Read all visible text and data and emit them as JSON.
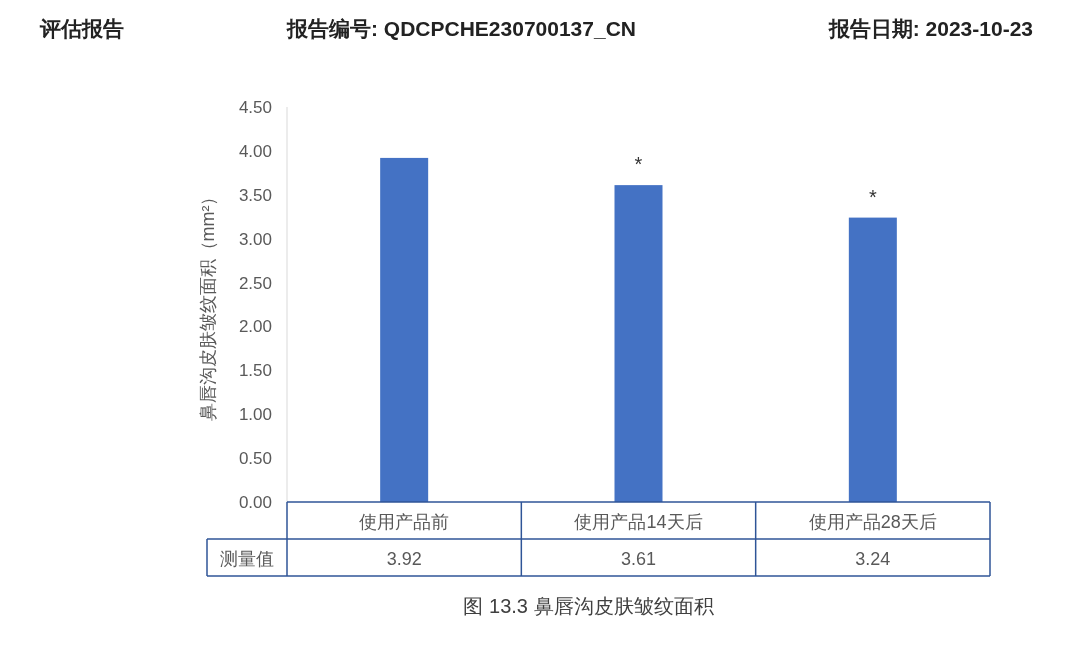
{
  "chart_data": {
    "type": "bar",
    "title": "图 13.3 鼻唇沟皮肤皱纹面积",
    "ylabel": "鼻唇沟皮肤皱纹面积（mm²）",
    "categories": [
      "使用产品前",
      "使用产品14天后",
      "使用产品28天后"
    ],
    "series": [
      {
        "name": "测量值",
        "color": "#4472c4",
        "values": [
          3.92,
          3.61,
          3.24
        ]
      }
    ],
    "data_labels": true,
    "ylim": [
      0,
      4.5
    ],
    "yticks": [
      {
        "value": 0,
        "label": "0.00"
      },
      {
        "value": 0.5,
        "label": "0.50"
      },
      {
        "value": 1,
        "label": "1.00"
      },
      {
        "value": 1.5,
        "label": "1.50"
      },
      {
        "value": 2,
        "label": "2.00"
      },
      {
        "value": 2.5,
        "label": "2.50"
      },
      {
        "value": 3,
        "label": "3.00"
      },
      {
        "value": 3.5,
        "label": "3.50"
      },
      {
        "value": 4,
        "label": "4.00"
      },
      {
        "value": 4.5,
        "label": "4.50"
      }
    ],
    "annotations": [
      "评估报告",
      "报告编号: QDCPCHE230700137_CN",
      "报告日期: 2023-10-23",
      {
        "text": "*",
        "x": "使用产品14天后",
        "y": 3.61
      },
      {
        "text": "*",
        "x": "使用产品28天后",
        "y": 3.24
      }
    ]
  }
}
